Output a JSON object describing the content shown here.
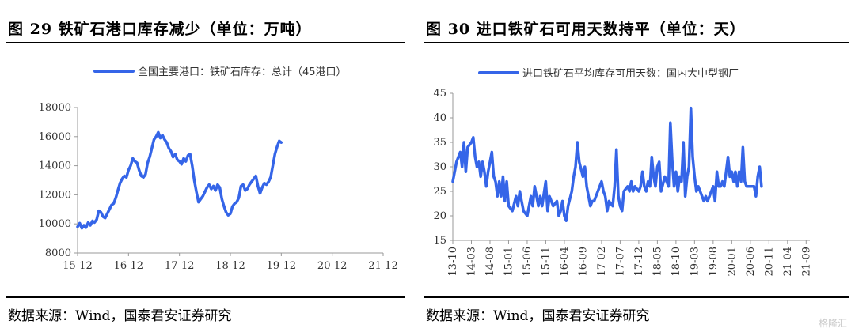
{
  "left": {
    "title": "图 29 铁矿石港口库存减少（单位：万吨）",
    "source": "数据来源：Wind，国泰君安证券研究"
  },
  "right": {
    "title": "图 30 进口铁矿石可用天数持平（单位：天）",
    "source": "数据来源：Wind，国泰君安证券研究"
  },
  "watermark": "格隆汇",
  "colors": {
    "line": "#3565e8",
    "axis": "#999999"
  },
  "chart_data": [
    {
      "type": "line",
      "title": "",
      "xlabel": "",
      "ylabel": "",
      "ylim": [
        8000,
        18000
      ],
      "yticks": [
        8000,
        10000,
        12000,
        14000,
        16000,
        18000
      ],
      "xlim": [
        0,
        72
      ],
      "xticks": [
        {
          "x": 0,
          "label": "15-12"
        },
        {
          "x": 12,
          "label": "16-12"
        },
        {
          "x": 24,
          "label": "17-12"
        },
        {
          "x": 36,
          "label": "18-12"
        },
        {
          "x": 48,
          "label": "19-12"
        },
        {
          "x": 60,
          "label": "20-12"
        },
        {
          "x": 72,
          "label": "21-12"
        }
      ],
      "legend_position": "top",
      "series": [
        {
          "name": "全国主要港口：铁矿石库存：总计（45港口）",
          "points": [
            [
              0,
              9800
            ],
            [
              0.5,
              10050
            ],
            [
              1,
              9700
            ],
            [
              1.5,
              9900
            ],
            [
              2,
              9750
            ],
            [
              2.5,
              10100
            ],
            [
              3,
              9900
            ],
            [
              3.5,
              10200
            ],
            [
              4,
              10100
            ],
            [
              4.5,
              10300
            ],
            [
              5,
              10900
            ],
            [
              5.5,
              10800
            ],
            [
              6,
              10500
            ],
            [
              6.5,
              10400
            ],
            [
              7,
              10700
            ],
            [
              7.5,
              11000
            ],
            [
              8,
              11300
            ],
            [
              8.5,
              11400
            ],
            [
              9,
              11800
            ],
            [
              9.5,
              12300
            ],
            [
              10,
              12800
            ],
            [
              10.5,
              13100
            ],
            [
              11,
              13300
            ],
            [
              11.5,
              13200
            ],
            [
              12,
              13700
            ],
            [
              12.5,
              14000
            ],
            [
              13,
              14500
            ],
            [
              13.5,
              14300
            ],
            [
              14,
              14200
            ],
            [
              14.5,
              13700
            ],
            [
              15,
              13300
            ],
            [
              15.5,
              13200
            ],
            [
              16,
              13400
            ],
            [
              16.5,
              14200
            ],
            [
              17,
              14600
            ],
            [
              17.5,
              15200
            ],
            [
              18,
              15800
            ],
            [
              18.5,
              16000
            ],
            [
              19,
              16300
            ],
            [
              19.5,
              15900
            ],
            [
              20,
              16100
            ],
            [
              20.5,
              15800
            ],
            [
              21,
              15600
            ],
            [
              21.5,
              15200
            ],
            [
              22,
              15000
            ],
            [
              22.5,
              14600
            ],
            [
              23,
              14800
            ],
            [
              23.5,
              14400
            ],
            [
              24,
              14300
            ],
            [
              24.5,
              14100
            ],
            [
              25,
              14500
            ],
            [
              25.5,
              14300
            ],
            [
              26,
              14700
            ],
            [
              26.5,
              14800
            ],
            [
              27,
              14000
            ],
            [
              27.5,
              13000
            ],
            [
              28,
              12200
            ],
            [
              28.5,
              11500
            ],
            [
              29,
              11700
            ],
            [
              29.5,
              11900
            ],
            [
              30,
              12200
            ],
            [
              30.5,
              12500
            ],
            [
              31,
              12700
            ],
            [
              31.5,
              12400
            ],
            [
              32,
              12600
            ],
            [
              32.5,
              12300
            ],
            [
              33,
              12700
            ],
            [
              33.5,
              12500
            ],
            [
              34,
              11700
            ],
            [
              34.5,
              11200
            ],
            [
              35,
              10800
            ],
            [
              35.5,
              10600
            ],
            [
              36,
              10700
            ],
            [
              36.5,
              11200
            ],
            [
              37,
              11400
            ],
            [
              37.5,
              11500
            ],
            [
              38,
              11800
            ],
            [
              38.5,
              12600
            ],
            [
              39,
              12700
            ],
            [
              39.5,
              12300
            ],
            [
              40,
              12400
            ],
            [
              40.5,
              12700
            ],
            [
              41,
              12900
            ],
            [
              41.5,
              13100
            ],
            [
              42,
              13300
            ],
            [
              42.5,
              12600
            ],
            [
              43,
              12100
            ],
            [
              43.5,
              12500
            ],
            [
              44,
              12800
            ],
            [
              44.5,
              12700
            ],
            [
              45,
              12900
            ],
            [
              45.5,
              13200
            ],
            [
              46,
              14000
            ],
            [
              46.5,
              14800
            ],
            [
              47,
              15300
            ],
            [
              47.5,
              15700
            ],
            [
              48,
              15600
            ]
          ]
        }
      ]
    },
    {
      "type": "line",
      "title": "",
      "xlabel": "",
      "ylabel": "",
      "ylim": [
        15,
        45
      ],
      "yticks": [
        15,
        20,
        25,
        30,
        35,
        40,
        45
      ],
      "xlim": [
        0,
        96
      ],
      "xticks": [
        {
          "x": 0,
          "label": "13-10"
        },
        {
          "x": 5,
          "label": "14-03"
        },
        {
          "x": 10,
          "label": "14-08"
        },
        {
          "x": 15,
          "label": "15-01"
        },
        {
          "x": 20,
          "label": "15-06"
        },
        {
          "x": 25,
          "label": "15-11"
        },
        {
          "x": 30,
          "label": "16-04"
        },
        {
          "x": 35,
          "label": "16-09"
        },
        {
          "x": 40,
          "label": "17-02"
        },
        {
          "x": 45,
          "label": "17-07"
        },
        {
          "x": 50,
          "label": "17-12"
        },
        {
          "x": 55,
          "label": "18-05"
        },
        {
          "x": 60,
          "label": "18-10"
        },
        {
          "x": 65,
          "label": "19-03"
        },
        {
          "x": 70,
          "label": "19-08"
        },
        {
          "x": 75,
          "label": "20-01"
        },
        {
          "x": 80,
          "label": "20-06"
        },
        {
          "x": 85,
          "label": "20-11"
        },
        {
          "x": 90,
          "label": "21-04"
        },
        {
          "x": 95,
          "label": "21-09"
        }
      ],
      "legend_position": "top",
      "series": [
        {
          "name": "进口铁矿石平均库存可用天数：国内大中型钢厂",
          "points": [
            [
              0,
              27
            ],
            [
              1,
              31
            ],
            [
              2,
              33
            ],
            [
              2.5,
              30
            ],
            [
              3,
              35
            ],
            [
              3.5,
              29
            ],
            [
              4,
              34
            ],
            [
              5,
              35
            ],
            [
              5.5,
              36
            ],
            [
              6,
              32
            ],
            [
              6.5,
              30
            ],
            [
              7,
              31
            ],
            [
              7.5,
              28
            ],
            [
              8,
              31
            ],
            [
              8.5,
              29
            ],
            [
              9,
              26
            ],
            [
              9.5,
              29
            ],
            [
              10,
              31
            ],
            [
              10.5,
              33
            ],
            [
              11,
              28
            ],
            [
              11.5,
              27
            ],
            [
              12,
              24
            ],
            [
              12.5,
              27
            ],
            [
              13,
              24
            ],
            [
              13.5,
              28
            ],
            [
              14,
              23
            ],
            [
              14.5,
              27
            ],
            [
              15,
              22
            ],
            [
              16,
              21
            ],
            [
              17,
              24
            ],
            [
              17.5,
              22
            ],
            [
              18,
              25
            ],
            [
              18.5,
              23
            ],
            [
              19,
              21
            ],
            [
              20,
              20
            ],
            [
              21,
              24
            ],
            [
              21.5,
              22
            ],
            [
              22,
              26
            ],
            [
              23,
              22
            ],
            [
              23.5,
              24
            ],
            [
              24,
              22
            ],
            [
              25,
              27
            ],
            [
              25.5,
              21
            ],
            [
              26,
              24
            ],
            [
              27,
              22
            ],
            [
              28,
              23
            ],
            [
              28.5,
              20
            ],
            [
              29,
              21
            ],
            [
              29.5,
              23
            ],
            [
              30,
              20
            ],
            [
              30.5,
              19
            ],
            [
              31,
              22
            ],
            [
              32,
              25
            ],
            [
              32.5,
              28
            ],
            [
              33,
              30
            ],
            [
              33.5,
              35
            ],
            [
              34,
              31
            ],
            [
              35,
              28
            ],
            [
              35.5,
              30
            ],
            [
              36,
              26
            ],
            [
              37,
              22
            ],
            [
              37.5,
              23
            ],
            [
              38,
              23
            ],
            [
              39,
              25
            ],
            [
              40,
              27
            ],
            [
              40.5,
              25
            ],
            [
              41,
              24
            ],
            [
              41.5,
              21
            ],
            [
              42,
              23
            ],
            [
              43,
              22
            ],
            [
              43.5,
              26
            ],
            [
              44,
              33.5
            ],
            [
              44.5,
              24
            ],
            [
              45,
              22
            ],
            [
              45.5,
              21
            ],
            [
              46,
              25
            ],
            [
              47,
              26
            ],
            [
              47.5,
              25
            ],
            [
              48,
              27
            ],
            [
              48.5,
              25
            ],
            [
              49,
              26
            ],
            [
              50,
              25
            ],
            [
              50.5,
              26
            ],
            [
              51,
              29
            ],
            [
              51.5,
              26
            ],
            [
              52,
              25
            ],
            [
              52.5,
              27
            ],
            [
              53,
              26
            ],
            [
              53.5,
              32
            ],
            [
              54,
              28
            ],
            [
              54.5,
              26
            ],
            [
              55,
              30
            ],
            [
              55.5,
              31
            ],
            [
              56,
              25
            ],
            [
              57,
              28
            ],
            [
              57.5,
              27
            ],
            [
              58,
              26
            ],
            [
              58.5,
              39
            ],
            [
              59,
              31
            ],
            [
              59.5,
              26
            ],
            [
              60,
              29
            ],
            [
              60.5,
              25
            ],
            [
              61,
              28
            ],
            [
              61.5,
              27
            ],
            [
              62,
              35
            ],
            [
              62.5,
              24
            ],
            [
              63,
              28
            ],
            [
              63.5,
              30
            ],
            [
              64,
              42
            ],
            [
              64.5,
              32
            ],
            [
              65,
              28
            ],
            [
              65.5,
              25
            ],
            [
              66,
              26
            ],
            [
              67,
              24
            ],
            [
              67.5,
              23
            ],
            [
              68,
              24
            ],
            [
              68.5,
              23
            ],
            [
              69,
              24
            ],
            [
              70,
              26
            ],
            [
              70.5,
              23
            ],
            [
              71,
              29
            ],
            [
              71.5,
              26
            ],
            [
              72,
              26
            ],
            [
              72.5,
              27
            ],
            [
              73,
              26
            ],
            [
              74,
              32
            ],
            [
              74.5,
              28
            ],
            [
              75,
              29
            ],
            [
              75.5,
              27
            ],
            [
              76,
              29
            ],
            [
              76.5,
              26
            ],
            [
              77,
              29
            ],
            [
              77.5,
              27
            ],
            [
              78,
              34
            ],
            [
              78.5,
              27
            ],
            [
              79,
              26
            ],
            [
              80,
              26
            ],
            [
              81,
              26
            ],
            [
              81.5,
              24
            ],
            [
              82,
              28
            ],
            [
              82.5,
              30
            ],
            [
              83,
              26
            ]
          ]
        }
      ]
    }
  ]
}
